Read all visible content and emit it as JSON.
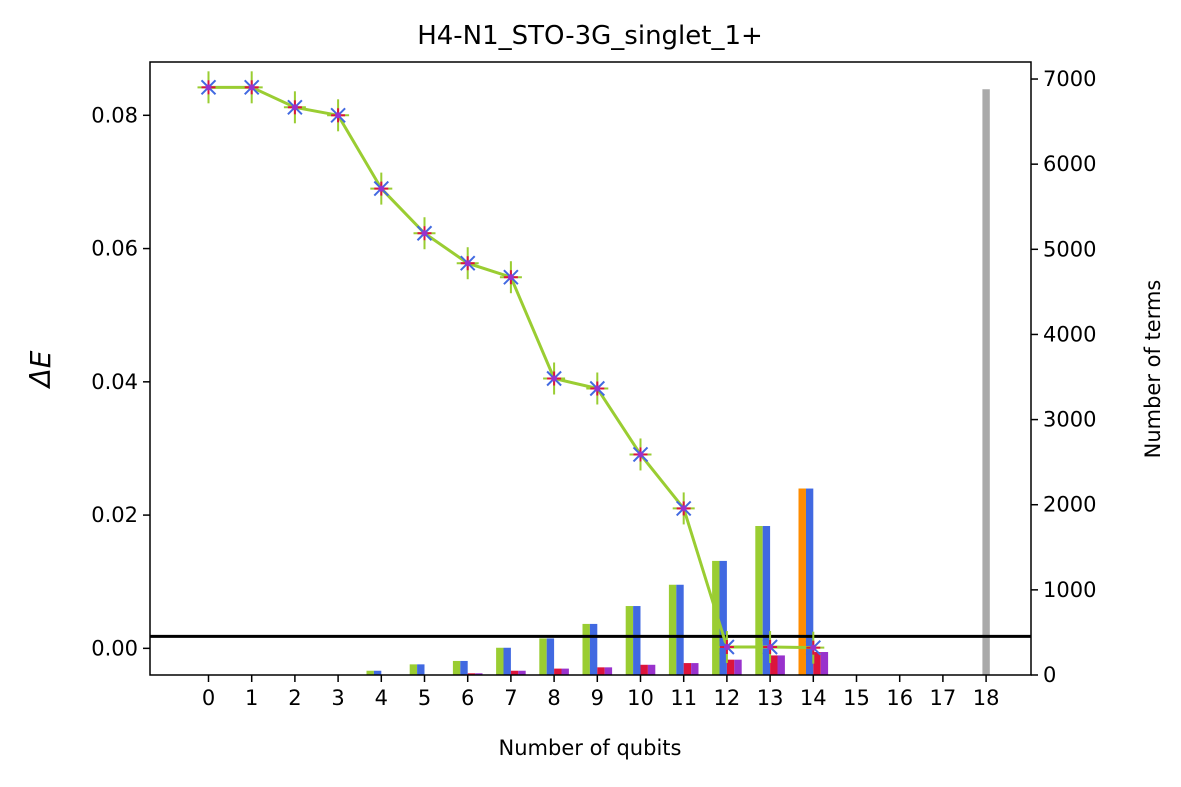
{
  "chart_data": {
    "type": "bar",
    "title": "H4-N1_STO-3G_singlet_1+",
    "xlabel": "Number of qubits",
    "ylabel_left": "ΔE",
    "ylabel_right": "Number of terms",
    "x_ticks": [
      "0",
      "1",
      "2",
      "3",
      "4",
      "5",
      "6",
      "7",
      "8",
      "9",
      "10",
      "11",
      "12",
      "13",
      "14",
      "15",
      "16",
      "17",
      "18"
    ],
    "ylim_left": [
      -0.004,
      0.088
    ],
    "yticks_left": [
      "0.00",
      "0.02",
      "0.04",
      "0.06",
      "0.08"
    ],
    "ylim_right": [
      0,
      7200
    ],
    "yticks_right": [
      "0",
      "1000",
      "2000",
      "3000",
      "4000",
      "5000",
      "6000",
      "7000"
    ],
    "reference_line": {
      "y": 0.0018,
      "color": "#000000"
    },
    "energy_line": {
      "color": "#9acd32",
      "marker_colors": [
        "#4169e1",
        "#dc143c",
        "#9932cc"
      ],
      "x": [
        0,
        1,
        2,
        3,
        4,
        5,
        6,
        7,
        8,
        9,
        10,
        11,
        12,
        13,
        14
      ],
      "y": [
        0.0842,
        0.0842,
        0.0812,
        0.08,
        0.069,
        0.0623,
        0.0578,
        0.0557,
        0.0405,
        0.039,
        0.0291,
        0.021,
        0.0002,
        0.0002,
        0.0001
      ]
    },
    "series": [
      {
        "color": "#9acd32",
        "x": [
          3,
          4,
          5,
          6,
          7,
          8,
          9,
          10,
          11,
          12,
          13,
          14
        ],
        "values": [
          5,
          50,
          125,
          165,
          320,
          430,
          600,
          810,
          1060,
          1340,
          1750,
          2190
        ]
      },
      {
        "color": "#4169e1",
        "x": [
          3,
          4,
          5,
          6,
          7,
          8,
          9,
          10,
          11,
          12,
          13,
          14
        ],
        "values": [
          5,
          50,
          125,
          165,
          320,
          430,
          600,
          810,
          1060,
          1340,
          1750,
          2190
        ]
      },
      {
        "color": "#dc143c",
        "x": [
          5,
          6,
          7,
          8,
          9,
          10,
          11,
          12,
          13,
          14
        ],
        "values": [
          5,
          20,
          50,
          75,
          90,
          120,
          140,
          180,
          230,
          270
        ]
      },
      {
        "color": "#9932cc",
        "x": [
          5,
          6,
          7,
          8,
          9,
          10,
          11,
          12,
          13,
          14
        ],
        "values": [
          5,
          20,
          50,
          75,
          90,
          120,
          140,
          180,
          230,
          270
        ]
      },
      {
        "color": "#ff8c00",
        "x": [
          14
        ],
        "values": [
          2190
        ]
      },
      {
        "color": "#a9a9a9",
        "x": [
          18
        ],
        "values": [
          6880
        ]
      }
    ]
  }
}
